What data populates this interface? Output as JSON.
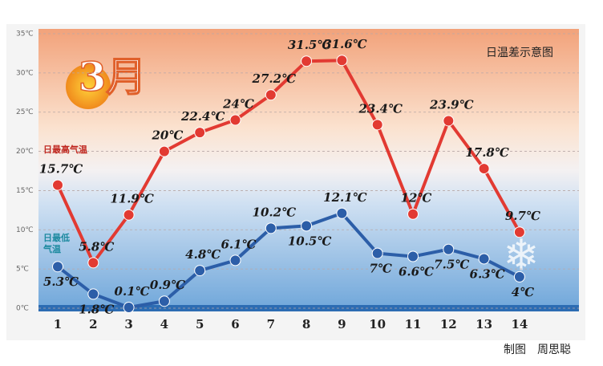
{
  "chart_data": {
    "type": "line",
    "title": "日温差示意图",
    "badge": "3月",
    "credit": "制图　周思聪",
    "categories": [
      "1",
      "2",
      "3",
      "4",
      "5",
      "6",
      "7",
      "8",
      "9",
      "10",
      "11",
      "12",
      "13",
      "14"
    ],
    "series": [
      {
        "name": "日最高气温",
        "color": "#e23a32",
        "values": [
          15.7,
          5.8,
          11.9,
          20,
          22.4,
          24,
          27.2,
          31.5,
          31.6,
          23.4,
          12,
          23.9,
          17.8,
          9.7
        ],
        "value_labels": [
          "15.7℃",
          "5.8℃",
          "11.9℃",
          "20℃",
          "22.4℃",
          "24℃",
          "27.2℃",
          "31.5℃",
          "31.6℃",
          "23.4℃",
          "12℃",
          "23.9℃",
          "17.8℃",
          "9.7℃"
        ]
      },
      {
        "name": "日最低气温",
        "color": "#2c5ea8",
        "values": [
          5.3,
          1.8,
          0.1,
          0.9,
          4.8,
          6.1,
          10.2,
          10.5,
          12.1,
          7,
          6.6,
          7.5,
          6.3,
          4
        ],
        "value_labels": [
          "5.3℃",
          "1.8℃",
          "0.1℃",
          "0.9℃",
          "4.8℃",
          "6.1℃",
          "10.2℃",
          "10.5℃",
          "12.1℃",
          "7℃",
          "6.6℃",
          "7.5℃",
          "6.3℃",
          "4℃"
        ]
      }
    ],
    "ylim": [
      0,
      35
    ],
    "yticks": [
      {
        "value": 0,
        "label": "0℃"
      },
      {
        "value": 5,
        "label": "5℃"
      },
      {
        "value": 10,
        "label": "10℃"
      },
      {
        "value": 15,
        "label": "15℃"
      },
      {
        "value": 20,
        "label": "20℃"
      },
      {
        "value": 25,
        "label": "25℃"
      },
      {
        "value": 30,
        "label": "30℃"
      },
      {
        "value": 35,
        "label": "35℃"
      }
    ],
    "grid": true
  }
}
